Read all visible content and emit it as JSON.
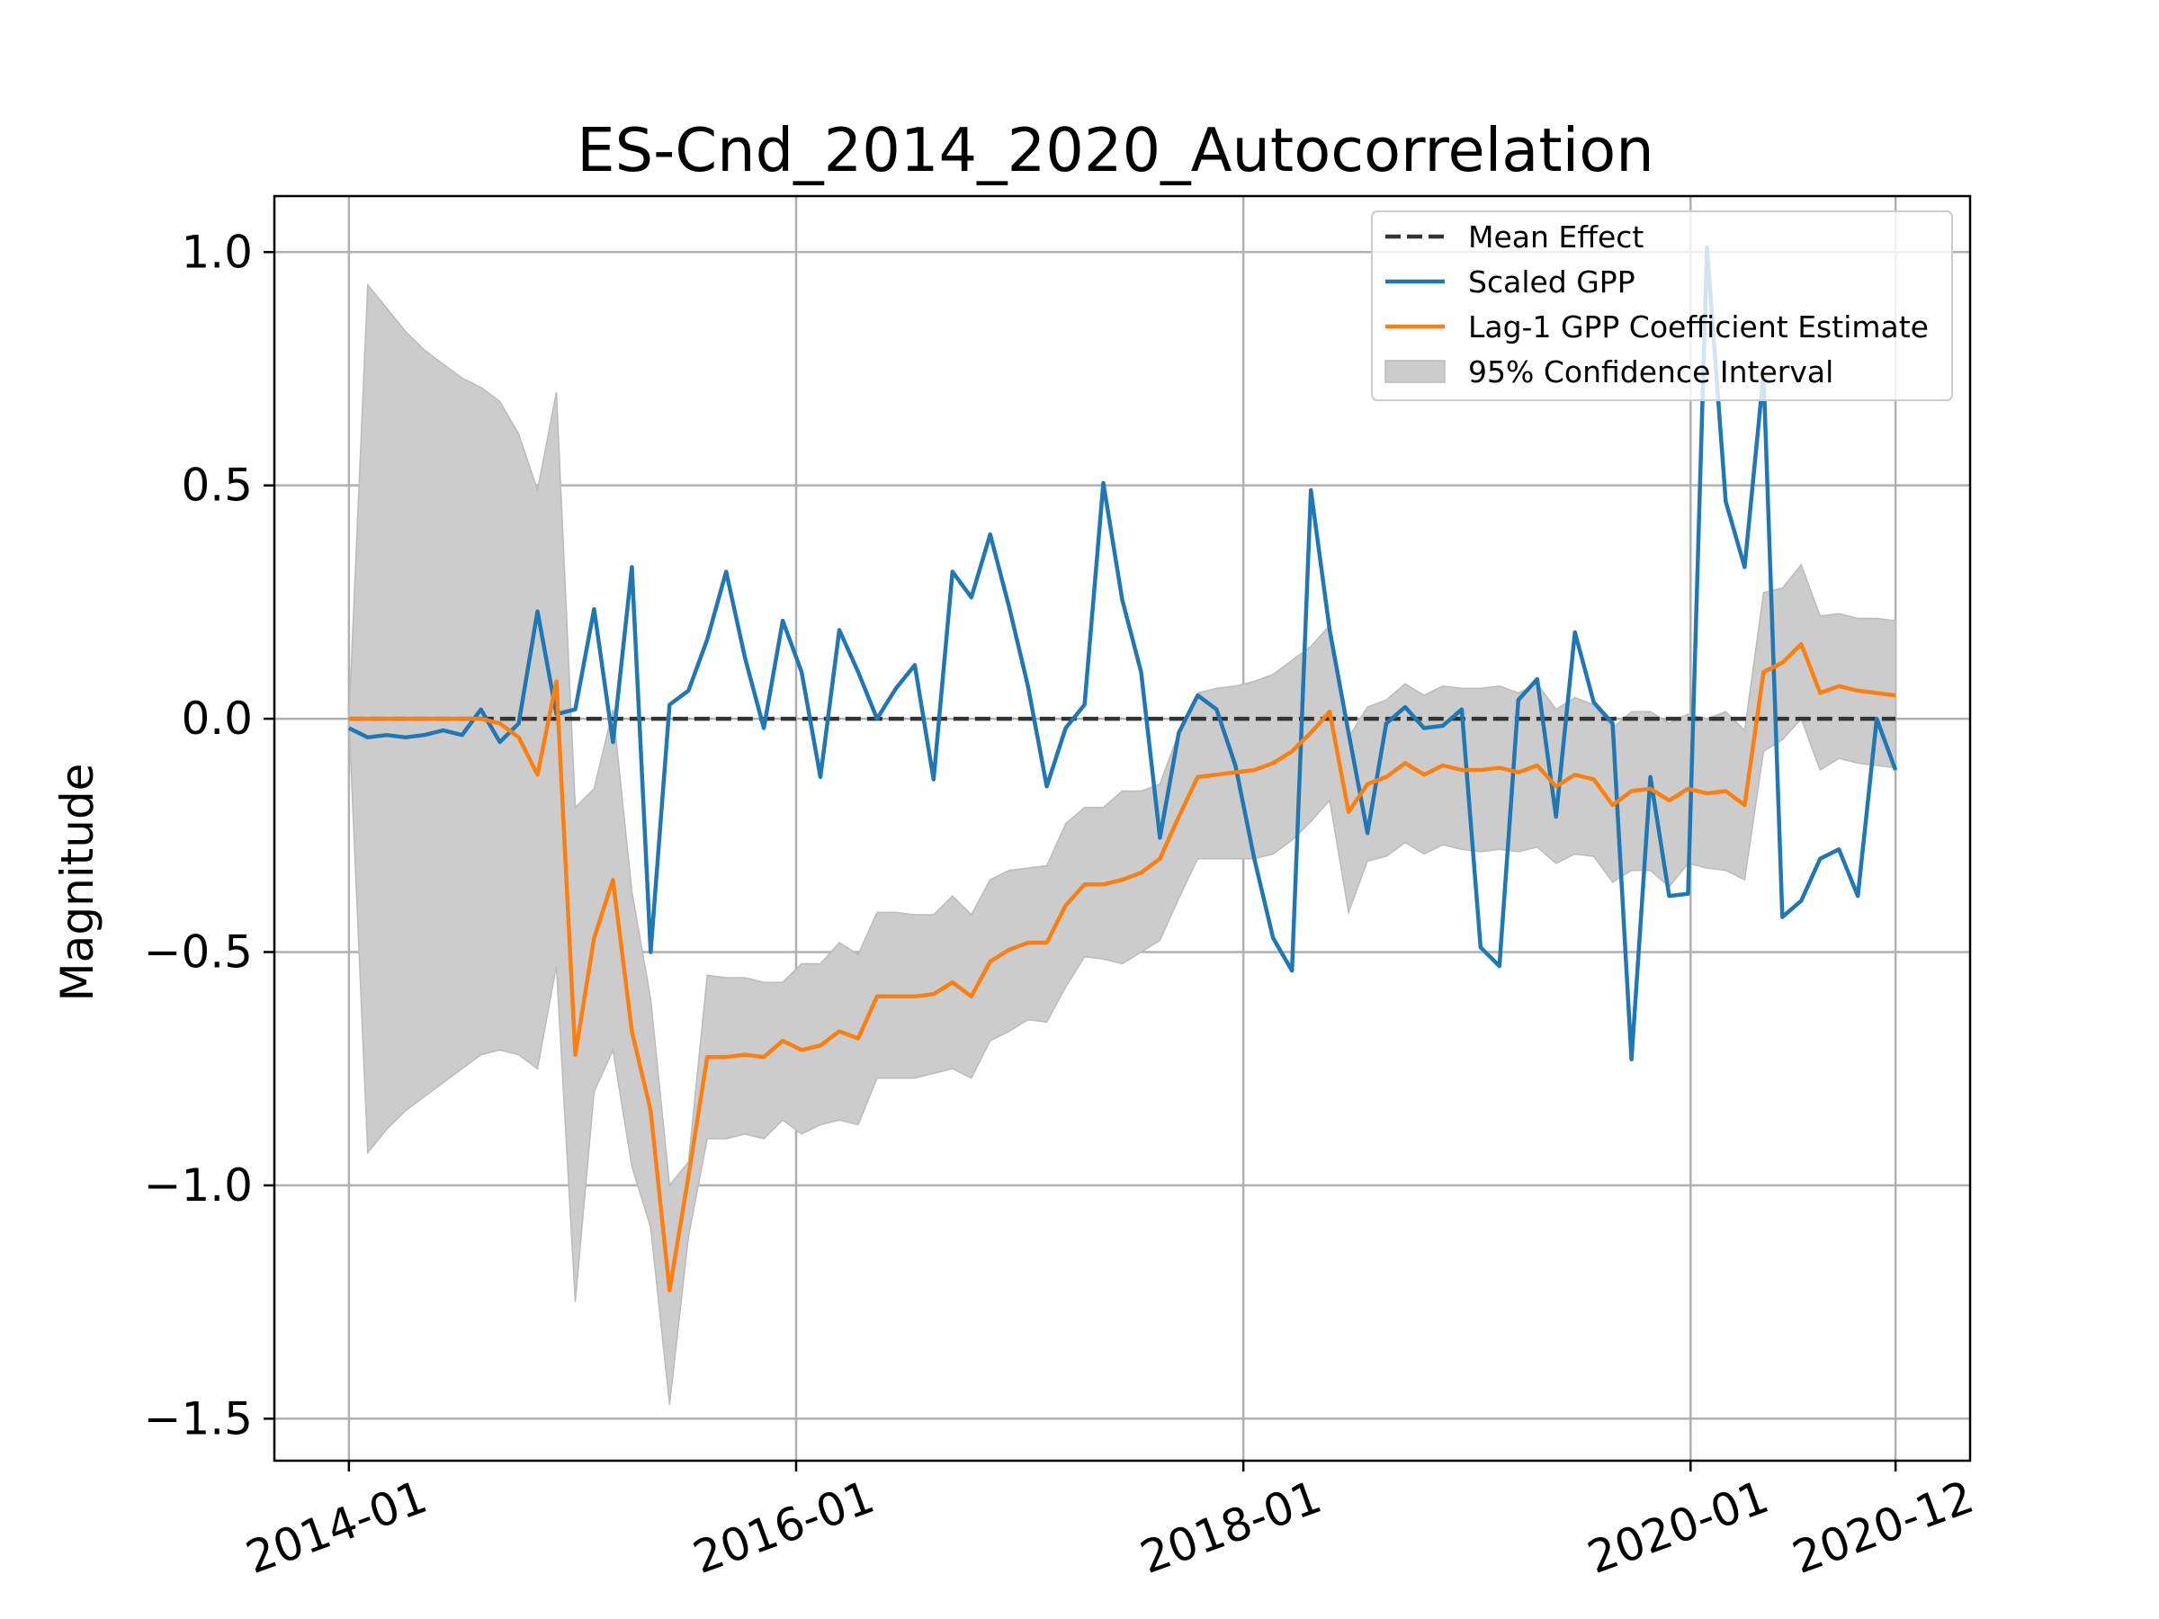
{
  "chart_data": {
    "type": "line",
    "title": "ES-Cnd_2014_2020_Autocorrelation",
    "xlabel": "",
    "ylabel": "Magnitude",
    "x_ticks": [
      "2014-01",
      "2016-01",
      "2018-01",
      "2020-01",
      "2020-12"
    ],
    "y_ticks": [
      "1.0",
      "0.5",
      "0.0",
      "−0.5",
      "−1.0",
      "−1.5"
    ],
    "ylim": [
      -1.59,
      1.12
    ],
    "xlim": [
      "2013-09",
      "2021-04"
    ],
    "x_range": [
      "2014-01",
      "2020-12"
    ],
    "grid": true,
    "legend_position": "top-right",
    "legend": [
      {
        "label": "Mean Effect",
        "kind": "dashed",
        "color": "#333333"
      },
      {
        "label": "Scaled GPP",
        "kind": "line",
        "color": "#1f77b4"
      },
      {
        "label": "Lag-1 GPP Coefficient Estimate",
        "kind": "line",
        "color": "#ff7f0e"
      },
      {
        "label": "95% Confidence Interval",
        "kind": "patch",
        "color": "#cccccc"
      }
    ],
    "mean_effect": 0.0,
    "series": [
      {
        "name": "Scaled GPP",
        "color": "#1f77b4",
        "values": [
          -0.02,
          -0.04,
          -0.035,
          -0.04,
          -0.035,
          -0.025,
          -0.035,
          0.02,
          -0.05,
          -0.01,
          0.23,
          0.01,
          0.02,
          0.235,
          -0.05,
          0.325,
          -0.5,
          0.03,
          0.06,
          0.17,
          0.315,
          0.13,
          -0.02,
          0.21,
          0.1,
          -0.125,
          0.19,
          0.1,
          0.0,
          0.065,
          0.115,
          -0.13,
          0.315,
          0.26,
          0.395,
          0.24,
          0.07,
          -0.145,
          -0.02,
          0.03,
          0.505,
          0.255,
          0.1,
          -0.255,
          -0.03,
          0.05,
          0.02,
          -0.1,
          -0.3,
          -0.47,
          -0.54,
          0.49,
          0.19,
          -0.03,
          -0.245,
          -0.01,
          0.025,
          -0.02,
          -0.015,
          0.02,
          -0.49,
          -0.53,
          0.04,
          0.085,
          -0.21,
          0.185,
          0.035,
          -0.01,
          -0.73,
          -0.125,
          -0.38,
          -0.375,
          1.01,
          0.465,
          0.325,
          0.74,
          -0.425,
          -0.39,
          -0.3,
          -0.28,
          -0.38,
          0.0,
          -0.11
        ]
      },
      {
        "name": "Lag-1 GPP Coefficient Estimate",
        "color": "#ff7f0e",
        "values": [
          0.0,
          0.0,
          0.0,
          0.0,
          0.0,
          0.0,
          0.0,
          0.0,
          -0.01,
          -0.04,
          -0.12,
          0.08,
          -0.72,
          -0.47,
          -0.345,
          -0.67,
          -0.84,
          -1.225,
          -0.98,
          -0.725,
          -0.725,
          -0.72,
          -0.725,
          -0.69,
          -0.71,
          -0.7,
          -0.67,
          -0.685,
          -0.595,
          -0.595,
          -0.595,
          -0.59,
          -0.565,
          -0.595,
          -0.52,
          -0.495,
          -0.48,
          -0.48,
          -0.4,
          -0.355,
          -0.355,
          -0.345,
          -0.33,
          -0.3,
          -0.21,
          -0.125,
          -0.12,
          -0.115,
          -0.11,
          -0.095,
          -0.07,
          -0.03,
          0.015,
          -0.2,
          -0.14,
          -0.125,
          -0.095,
          -0.12,
          -0.1,
          -0.11,
          -0.11,
          -0.105,
          -0.115,
          -0.1,
          -0.145,
          -0.12,
          -0.13,
          -0.185,
          -0.155,
          -0.15,
          -0.175,
          -0.15,
          -0.16,
          -0.155,
          -0.185,
          0.1,
          0.12,
          0.16,
          0.055,
          0.07,
          0.06,
          0.055,
          0.05
        ]
      }
    ],
    "confidence_interval": {
      "name": "95% Confidence Interval",
      "upper": [
        0.0,
        0.93,
        0.88,
        0.83,
        0.79,
        0.76,
        0.73,
        0.71,
        0.68,
        0.61,
        0.49,
        0.7,
        -0.19,
        -0.15,
        0.02,
        -0.37,
        -0.6,
        -1.0,
        -0.95,
        -0.55,
        -0.555,
        -0.555,
        -0.565,
        -0.565,
        -0.525,
        -0.525,
        -0.48,
        -0.505,
        -0.415,
        -0.415,
        -0.42,
        -0.42,
        -0.38,
        -0.42,
        -0.345,
        -0.325,
        -0.32,
        -0.315,
        -0.225,
        -0.19,
        -0.19,
        -0.155,
        -0.155,
        -0.14,
        -0.03,
        0.055,
        0.065,
        0.07,
        0.08,
        0.095,
        0.125,
        0.155,
        0.2,
        -0.04,
        0.025,
        0.04,
        0.075,
        0.05,
        0.07,
        0.065,
        0.065,
        0.07,
        0.055,
        0.075,
        0.02,
        0.045,
        0.03,
        -0.02,
        0.015,
        0.015,
        -0.01,
        0.01,
        0.0,
        0.015,
        -0.025,
        0.27,
        0.28,
        0.33,
        0.22,
        0.225,
        0.215,
        0.215,
        0.21
      ],
      "lower": [
        0.0,
        -0.93,
        -0.88,
        -0.84,
        -0.81,
        -0.78,
        -0.75,
        -0.72,
        -0.71,
        -0.72,
        -0.75,
        -0.53,
        -1.25,
        -0.8,
        -0.71,
        -0.96,
        -1.09,
        -1.47,
        -1.11,
        -0.9,
        -0.9,
        -0.89,
        -0.9,
        -0.86,
        -0.89,
        -0.87,
        -0.86,
        -0.87,
        -0.77,
        -0.77,
        -0.77,
        -0.76,
        -0.75,
        -0.77,
        -0.69,
        -0.67,
        -0.645,
        -0.65,
        -0.575,
        -0.51,
        -0.515,
        -0.525,
        -0.5,
        -0.475,
        -0.385,
        -0.3,
        -0.3,
        -0.3,
        -0.3,
        -0.29,
        -0.26,
        -0.22,
        -0.175,
        -0.415,
        -0.305,
        -0.295,
        -0.265,
        -0.29,
        -0.27,
        -0.28,
        -0.285,
        -0.28,
        -0.285,
        -0.275,
        -0.31,
        -0.29,
        -0.295,
        -0.35,
        -0.325,
        -0.325,
        -0.36,
        -0.31,
        -0.32,
        -0.325,
        -0.345,
        -0.07,
        -0.045,
        0.0,
        -0.11,
        -0.085,
        -0.095,
        -0.1,
        -0.105
      ]
    }
  }
}
